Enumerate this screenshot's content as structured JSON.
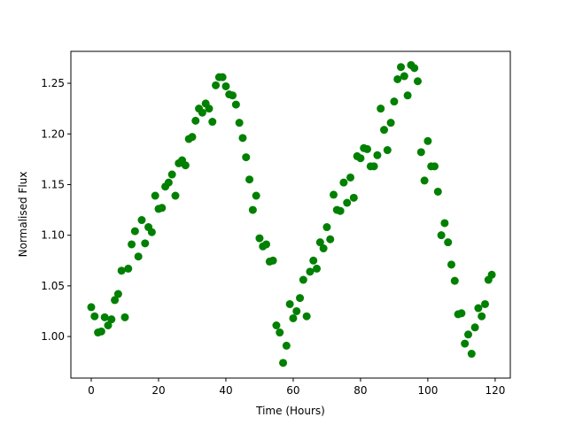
{
  "chart_data": {
    "type": "scatter",
    "xlabel": "Time (Hours)",
    "ylabel": "Normalised Flux",
    "xlim": [
      -6.05,
      124.5
    ],
    "ylim": [
      0.959,
      1.2815
    ],
    "xticks": [
      0,
      20,
      40,
      60,
      80,
      100,
      120
    ],
    "yticks": [
      {
        "value": 1,
        "label": "1.00"
      },
      1.05,
      {
        "value": 1.1,
        "label": "1.10"
      },
      1.15,
      {
        "value": 1.2,
        "label": "1.20"
      },
      1.25
    ],
    "color": "#008000",
    "x": [
      0,
      1,
      2,
      3,
      4,
      5,
      6,
      7,
      8,
      9,
      10,
      11,
      12,
      13,
      14,
      15,
      16,
      17,
      18,
      19,
      20,
      21,
      22,
      23,
      24,
      25,
      26,
      27,
      28,
      29,
      30,
      31,
      32,
      33,
      34,
      35,
      36,
      37,
      38,
      39,
      40,
      41,
      42,
      43,
      44,
      45,
      46,
      47,
      48,
      49,
      50,
      51,
      52,
      53,
      54,
      55,
      56,
      57,
      58,
      59,
      60,
      61,
      62,
      63,
      64,
      65,
      66,
      67,
      68,
      69,
      70,
      71,
      72,
      73,
      74,
      75,
      76,
      77,
      78,
      79,
      80,
      81,
      82,
      83,
      84,
      85,
      86,
      87,
      88,
      89,
      90,
      91,
      92,
      93,
      94,
      95,
      96,
      97,
      98,
      99,
      100,
      101,
      102,
      103,
      104,
      105,
      106,
      107,
      108,
      109,
      110,
      111,
      112,
      113,
      114,
      115,
      116,
      117,
      118,
      119
    ],
    "values": [
      1.029,
      1.02,
      1.004,
      1.005,
      1.019,
      1.011,
      1.017,
      1.036,
      1.042,
      1.065,
      1.019,
      1.067,
      1.091,
      1.104,
      1.079,
      1.115,
      1.092,
      1.108,
      1.103,
      1.139,
      1.126,
      1.127,
      1.148,
      1.152,
      1.16,
      1.139,
      1.171,
      1.174,
      1.169,
      1.195,
      1.197,
      1.213,
      1.225,
      1.221,
      1.23,
      1.225,
      1.212,
      1.248,
      1.256,
      1.256,
      1.247,
      1.239,
      1.238,
      1.229,
      1.211,
      1.196,
      1.177,
      1.155,
      1.125,
      1.139,
      1.097,
      1.089,
      1.091,
      1.074,
      1.075,
      1.011,
      1.004,
      0.974,
      0.991,
      1.032,
      1.018,
      1.025,
      1.038,
      1.056,
      1.02,
      1.064,
      1.075,
      1.067,
      1.093,
      1.087,
      1.108,
      1.096,
      1.14,
      1.125,
      1.124,
      1.152,
      1.132,
      1.157,
      1.137,
      1.178,
      1.176,
      1.186,
      1.185,
      1.168,
      1.168,
      1.179,
      1.225,
      1.204,
      1.184,
      1.211,
      1.232,
      1.254,
      1.266,
      1.257,
      1.238,
      1.268,
      1.265,
      1.252,
      1.182,
      1.154,
      1.193,
      1.168,
      1.168,
      1.143,
      1.1,
      1.112,
      1.093,
      1.071,
      1.055,
      1.022,
      1.023,
      0.993,
      1.002,
      0.983,
      1.009,
      1.028,
      1.02,
      1.032,
      1.056,
      1.061
    ]
  }
}
